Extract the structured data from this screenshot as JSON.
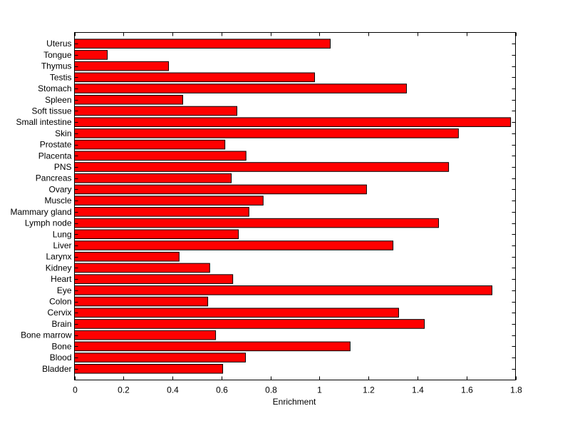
{
  "chart_data": {
    "type": "bar",
    "orientation": "horizontal",
    "title": "",
    "xlabel": "Enrichment",
    "ylabel": "",
    "xlim": [
      0,
      1.8
    ],
    "xticks": [
      0,
      0.2,
      0.4,
      0.6,
      0.8,
      1,
      1.2,
      1.4,
      1.6,
      1.8
    ],
    "xtick_labels": [
      "0",
      "0.2",
      "0.4",
      "0.6",
      "0.8",
      "1",
      "1.2",
      "1.4",
      "1.6",
      "1.8"
    ],
    "grid": false,
    "bar_color": "#ff0000",
    "edge_color": "#000000",
    "categories": [
      "Bladder",
      "Blood",
      "Bone",
      "Bone marrow",
      "Brain",
      "Cervix",
      "Colon",
      "Eye",
      "Heart",
      "Kidney",
      "Larynx",
      "Liver",
      "Lung",
      "Lymph node",
      "Mammary gland",
      "Muscle",
      "Ovary",
      "Pancreas",
      "PNS",
      "Placenta",
      "Prostate",
      "Skin",
      "Small intestine",
      "Soft tissue",
      "Spleen",
      "Stomach",
      "Testis",
      "Thymus",
      "Tongue",
      "Uterus"
    ],
    "values": [
      0.605,
      0.698,
      1.125,
      0.576,
      1.428,
      1.323,
      0.544,
      1.704,
      0.646,
      0.552,
      0.427,
      1.3,
      0.669,
      1.486,
      0.712,
      0.77,
      1.192,
      0.64,
      1.527,
      0.7,
      0.614,
      1.567,
      1.78,
      0.663,
      0.442,
      1.355,
      0.98,
      0.384,
      0.134,
      1.044
    ]
  }
}
